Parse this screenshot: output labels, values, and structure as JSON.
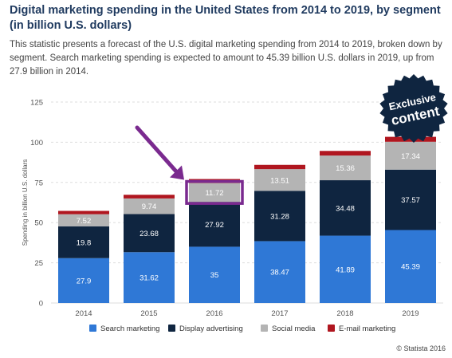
{
  "page": {
    "title": "Digital marketing spending in the United States from 2014 to 2019, by segment (in billion U.S. dollars)",
    "description": "This statistic presents a forecast of the U.S. digital marketing spending from 2014 to 2019, broken down by segment. Search marketing spending is expected to amount to 45.39 billion U.S. dollars in 2019, up from 27.9 billion in 2014.",
    "credit": "© Statista 2016",
    "badge_line1": "Exclusive",
    "badge_line2": "content"
  },
  "chart_data": {
    "type": "bar",
    "stacked": true,
    "categories": [
      "2014",
      "2015",
      "2016",
      "2017",
      "2018",
      "2019"
    ],
    "ylabel": "Spending in billion U.S. dollars",
    "ylim": [
      0,
      125
    ],
    "yticks": [
      0,
      25,
      50,
      75,
      100,
      125
    ],
    "grid": true,
    "legend_position": "bottom",
    "series": [
      {
        "name": "Search marketing",
        "color": "#2f78d6",
        "values": [
          27.9,
          31.62,
          35,
          38.47,
          41.89,
          45.39
        ]
      },
      {
        "name": "Display advertising",
        "color": "#0f2540",
        "values": [
          19.8,
          23.68,
          27.92,
          31.28,
          34.48,
          37.57
        ]
      },
      {
        "name": "Social media",
        "color": "#b4b4b4",
        "values": [
          7.52,
          9.74,
          11.72,
          13.51,
          15.36,
          17.34
        ]
      },
      {
        "name": "E-mail marketing",
        "color": "#b0161f",
        "values": [
          2.07,
          2.27,
          2.47,
          2.67,
          2.87,
          3.07
        ]
      }
    ],
    "highlight": {
      "category": "2016",
      "series": "Social media",
      "color": "#7a2a8f"
    }
  }
}
